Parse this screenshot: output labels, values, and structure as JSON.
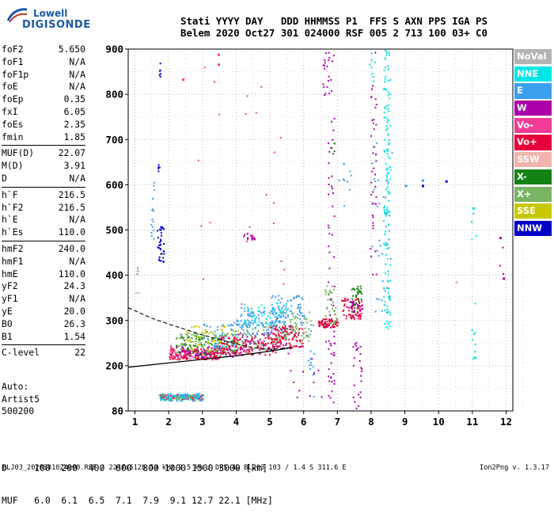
{
  "logo": {
    "line1": "Lowell",
    "line2": "DIGISONDE"
  },
  "header": {
    "line1": "Stati YYYY DAY   DDD HHMMSS P1  FFS S AXN PPS IGA PS",
    "line2": "Belem 2020 Oct27 301 024000 RSF 005 2 713 100 03+ C0"
  },
  "params": [
    [
      {
        "label": "foF2",
        "value": "5.650"
      },
      {
        "label": "foF1",
        "value": "N/A"
      },
      {
        "label": "foF1p",
        "value": "N/A"
      },
      {
        "label": "foE",
        "value": "N/A"
      },
      {
        "label": "foEp",
        "value": "0.35"
      },
      {
        "label": "fxI",
        "value": "6.05"
      },
      {
        "label": "foEs",
        "value": "2.35"
      },
      {
        "label": "fmin",
        "value": "1.85"
      }
    ],
    [
      {
        "label": "MUF(D)",
        "value": "22.07"
      },
      {
        "label": "M(D)",
        "value": "3.91"
      },
      {
        "label": "D",
        "value": "N/A"
      }
    ],
    [
      {
        "label": "h`F",
        "value": "216.5"
      },
      {
        "label": "h`F2",
        "value": "216.5"
      },
      {
        "label": "h`E",
        "value": "N/A"
      },
      {
        "label": "h`Es",
        "value": "110.0"
      }
    ],
    [
      {
        "label": "hmF2",
        "value": "240.0"
      },
      {
        "label": "hmF1",
        "value": "N/A"
      },
      {
        "label": "hmE",
        "value": "110.0"
      },
      {
        "label": "yF2",
        "value": "24.3"
      },
      {
        "label": "yF1",
        "value": "N/A"
      },
      {
        "label": "yE",
        "value": "20.0"
      },
      {
        "label": "B0",
        "value": "26.3"
      },
      {
        "label": "B1",
        "value": "1.54"
      }
    ],
    [
      {
        "label": "C-level",
        "value": "22"
      }
    ]
  ],
  "auto": {
    "line1": "Auto:",
    "line2": "Artist5",
    "line3": "500200"
  },
  "muf_table": {
    "d_row": "D     100  200  400  600  800 1000 1500 3000 [km]",
    "muf_row": "MUF   6.0  6.1  6.5  7.1  7.9  9.1 12.7 22.1 [MHz]"
  },
  "footer": {
    "left": "BLJ03_2020301024000.RSF / 224fx512h 50 kHz 2.5 km / DPS-4D BLJ03 103 / 1.4 S 311.6 E",
    "right": "Ion2Png v. 1.3.17"
  },
  "legend": [
    {
      "label": "NoVal",
      "color": "#b4b4b4"
    },
    {
      "label": "NNE",
      "color": "#00e6e6"
    },
    {
      "label": "E",
      "color": "#3ca0f0"
    },
    {
      "label": "W",
      "color": "#aa00aa"
    },
    {
      "label": "Vo-",
      "color": "#f03c96"
    },
    {
      "label": "Vo+",
      "color": "#e6003c"
    },
    {
      "label": "SSW",
      "color": "#f0b4aa"
    },
    {
      "label": "X-",
      "color": "#148214"
    },
    {
      "label": "X+",
      "color": "#78b464"
    },
    {
      "label": "SSE",
      "color": "#c8c800"
    },
    {
      "label": "NNW",
      "color": "#0000c8"
    }
  ],
  "chart_data": {
    "type": "scatter",
    "title": "",
    "xlabel": "",
    "ylabel": "",
    "xlim": [
      0.8,
      12.2
    ],
    "ylim": [
      80,
      900
    ],
    "x_ticks": [
      "1",
      "2",
      "3",
      "4",
      "5",
      "6",
      "7",
      "8",
      "9",
      "10",
      "11",
      "12"
    ],
    "y_ticks": [
      "80",
      "200",
      "300",
      "400",
      "500",
      "600",
      "700",
      "800",
      "900"
    ],
    "y_tick_values": [
      80,
      200,
      300,
      400,
      500,
      600,
      700,
      800,
      900
    ],
    "grid": true,
    "traces": [
      {
        "name": "profile-solid",
        "points": [
          [
            0.8,
            196
          ],
          [
            2,
            206
          ],
          [
            3,
            214
          ],
          [
            4,
            222
          ],
          [
            5,
            232
          ],
          [
            5.65,
            240
          ]
        ]
      },
      {
        "name": "profile-dashed",
        "points": [
          [
            0.8,
            328
          ],
          [
            1.5,
            305
          ],
          [
            2,
            292
          ],
          [
            2.5,
            280
          ],
          [
            3,
            268
          ],
          [
            3.5,
            258
          ],
          [
            4,
            248
          ],
          [
            4.5,
            240
          ],
          [
            5,
            236
          ],
          [
            5.65,
            240
          ]
        ]
      }
    ],
    "clusters": [
      {
        "series": "Vo+",
        "x": [
          2.0,
          3.5
        ],
        "y": [
          215,
          240
        ],
        "n": 150
      },
      {
        "series": "Vo-",
        "x": [
          2.0,
          3.5
        ],
        "y": [
          215,
          240
        ],
        "n": 60
      },
      {
        "series": "X+",
        "x": [
          2.2,
          4.0
        ],
        "y": [
          225,
          275
        ],
        "n": 120
      },
      {
        "series": "X-",
        "x": [
          2.2,
          4.0
        ],
        "y": [
          225,
          270
        ],
        "n": 70
      },
      {
        "series": "SSE",
        "x": [
          2.5,
          4.2
        ],
        "y": [
          230,
          290
        ],
        "n": 70
      },
      {
        "series": "W",
        "x": [
          2.0,
          4.0
        ],
        "y": [
          220,
          245
        ],
        "n": 60
      },
      {
        "series": "E",
        "x": [
          3.0,
          4.5
        ],
        "y": [
          240,
          300
        ],
        "n": 80
      },
      {
        "series": "Vo+",
        "x": [
          3.5,
          5.2
        ],
        "y": [
          225,
          265
        ],
        "n": 130
      },
      {
        "series": "W",
        "x": [
          4.0,
          5.5
        ],
        "y": [
          230,
          275
        ],
        "n": 50
      },
      {
        "series": "X+",
        "x": [
          4.0,
          5.5
        ],
        "y": [
          235,
          300
        ],
        "n": 70
      },
      {
        "series": "E",
        "x": [
          4.0,
          5.5
        ],
        "y": [
          270,
          330
        ],
        "n": 90
      },
      {
        "series": "NNE",
        "x": [
          4.2,
          5.5
        ],
        "y": [
          290,
          340
        ],
        "n": 50
      },
      {
        "series": "Vo+",
        "x": [
          5.0,
          6.0
        ],
        "y": [
          240,
          290
        ],
        "n": 100
      },
      {
        "series": "E",
        "x": [
          5.0,
          6.0
        ],
        "y": [
          290,
          360
        ],
        "n": 80
      },
      {
        "series": "X+",
        "x": [
          5.4,
          6.2
        ],
        "y": [
          250,
          320
        ],
        "n": 50
      },
      {
        "series": "Vo+",
        "x": [
          6.4,
          7.0
        ],
        "y": [
          285,
          305
        ],
        "n": 70
      },
      {
        "series": "X+",
        "x": [
          6.6,
          7.0
        ],
        "y": [
          290,
          380
        ],
        "n": 40
      },
      {
        "series": "Vo+",
        "x": [
          7.1,
          7.7
        ],
        "y": [
          305,
          350
        ],
        "n": 70
      },
      {
        "series": "X-",
        "x": [
          7.4,
          7.7
        ],
        "y": [
          320,
          380
        ],
        "n": 30
      },
      {
        "series": "W",
        "x": [
          7.3,
          7.8
        ],
        "y": [
          320,
          345
        ],
        "n": 20
      },
      {
        "series": "Vo+",
        "x": [
          1.7,
          3.0
        ],
        "y": [
          112,
          125
        ],
        "n": 90
      },
      {
        "series": "X+",
        "x": [
          1.7,
          3.0
        ],
        "y": [
          110,
          125
        ],
        "n": 60
      },
      {
        "series": "NNE",
        "x": [
          1.7,
          3.0
        ],
        "y": [
          108,
          128
        ],
        "n": 50
      },
      {
        "series": "E",
        "x": [
          1.7,
          3.0
        ],
        "y": [
          108,
          128
        ],
        "n": 50
      },
      {
        "series": "NNW",
        "x": [
          1.65,
          1.85
        ],
        "y": [
          430,
          510
        ],
        "n": 35
      },
      {
        "series": "NNW",
        "x": [
          1.65,
          1.75
        ],
        "y": [
          620,
          650
        ],
        "n": 5
      },
      {
        "series": "NNW",
        "x": [
          1.65,
          1.75
        ],
        "y": [
          825,
          875
        ],
        "n": 6
      },
      {
        "series": "E",
        "x": [
          1.45,
          1.55
        ],
        "y": [
          480,
          620
        ],
        "n": 15
      },
      {
        "series": "NoVal",
        "x": [
          1.0,
          1.1
        ],
        "y": [
          360,
          420
        ],
        "n": 8
      },
      {
        "series": "W",
        "x": [
          4.2,
          4.6
        ],
        "y": [
          480,
          495
        ],
        "n": 15
      },
      {
        "series": "NNE",
        "x": [
          8.35,
          8.55
        ],
        "y": [
          280,
          900
        ],
        "n": 140
      },
      {
        "series": "E",
        "x": [
          8.0,
          8.6
        ],
        "y": [
          300,
          700
        ],
        "n": 40
      },
      {
        "series": "W",
        "x": [
          7.95,
          8.15
        ],
        "y": [
          400,
          900
        ],
        "n": 40
      },
      {
        "series": "W",
        "x": [
          6.7,
          6.9
        ],
        "y": [
          82,
          900
        ],
        "n": 60
      },
      {
        "series": "E",
        "x": [
          6.1,
          6.3
        ],
        "y": [
          100,
          300
        ],
        "n": 15
      },
      {
        "series": "W",
        "x": [
          6.55,
          6.75
        ],
        "y": [
          800,
          900
        ],
        "n": 15
      },
      {
        "series": "X-",
        "x": [
          6.8,
          6.9
        ],
        "y": [
          660,
          700
        ],
        "n": 5
      },
      {
        "series": "W",
        "x": [
          7.45,
          7.7
        ],
        "y": [
          80,
          260
        ],
        "n": 25
      },
      {
        "series": "NNE",
        "x": [
          10.95,
          11.1
        ],
        "y": [
          180,
          560
        ],
        "n": 12
      },
      {
        "series": "W",
        "x": [
          11.8,
          12.0
        ],
        "y": [
          380,
          500
        ],
        "n": 4
      },
      {
        "series": "NNE",
        "x": [
          7.9,
          8.1
        ],
        "y": [
          830,
          900
        ],
        "n": 8
      },
      {
        "series": "Vo-",
        "x": [
          2.8,
          5.5
        ],
        "y": [
          280,
          900
        ],
        "n": 25
      },
      {
        "series": "W",
        "x": [
          5.5,
          7.0
        ],
        "y": [
          100,
          260
        ],
        "n": 20
      },
      {
        "series": "E",
        "x": [
          7.0,
          7.5
        ],
        "y": [
          550,
          650
        ],
        "n": 10
      }
    ],
    "points": [
      {
        "series": "NNW",
        "x": 9.5,
        "y": 600
      },
      {
        "series": "NNW",
        "x": 10.2,
        "y": 610
      },
      {
        "series": "E",
        "x": 9.5,
        "y": 612
      },
      {
        "series": "W",
        "x": 11.8,
        "y": 485
      },
      {
        "series": "W",
        "x": 11.9,
        "y": 395
      },
      {
        "series": "NNE",
        "x": 11.05,
        "y": 220
      },
      {
        "series": "NNE",
        "x": 11.0,
        "y": 550
      },
      {
        "series": "SSW",
        "x": 10.5,
        "y": 387
      },
      {
        "series": "E",
        "x": 9.0,
        "y": 600
      },
      {
        "series": "Vo-",
        "x": 2.4,
        "y": 835
      },
      {
        "series": "Vo-",
        "x": 3.45,
        "y": 890
      },
      {
        "series": "Vo-",
        "x": 3.45,
        "y": 868
      }
    ]
  }
}
